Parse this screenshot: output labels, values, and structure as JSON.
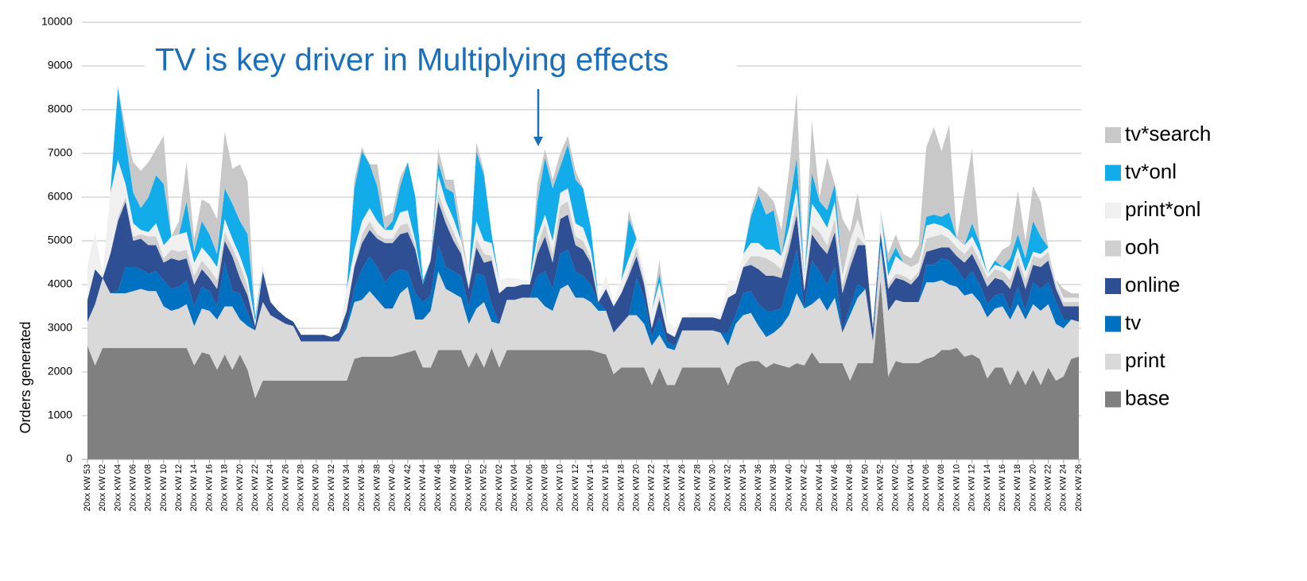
{
  "chart_data": {
    "type": "stacked_area",
    "annotation": "TV is key driver in Multiplying effects",
    "y_label": "Orders generated",
    "ylim": [
      0,
      10000
    ],
    "yticks": [
      0,
      1000,
      2000,
      3000,
      4000,
      5000,
      6000,
      7000,
      8000,
      9000,
      10000
    ],
    "grid": true,
    "legend": "right",
    "categories": [
      "20xx KW 53",
      null,
      "20xx KW 02",
      null,
      "20xx KW 04",
      null,
      "20xx KW 06",
      null,
      "20xx KW 08",
      null,
      "20xx KW 10",
      null,
      "20xx KW 12",
      null,
      "20xx KW 14",
      null,
      "20xx KW 16",
      null,
      "20xx KW 18",
      null,
      "20xx KW 20",
      null,
      "20xx KW 22",
      null,
      "20xx KW 24",
      null,
      "20xx KW 26",
      null,
      "20xx KW 28",
      null,
      "20xx KW 30",
      null,
      "20xx KW 32",
      null,
      "20xx KW 34",
      null,
      "20xx KW 36",
      null,
      "20xx KW 38",
      null,
      "20xx KW 40",
      null,
      "20xx KW 42",
      null,
      "20xx KW 44",
      null,
      "20xx KW 46",
      null,
      "20xx KW 48",
      null,
      "20xx KW 50",
      null,
      "20xx KW 52",
      null,
      "20xx KW 02",
      null,
      "20xx KW 04",
      null,
      "20xx KW 06",
      null,
      "20xx KW 08",
      null,
      "20xx KW 10",
      null,
      "20xx KW 12",
      null,
      "20xx KW 14",
      null,
      "20xx KW 16",
      null,
      "20xx KW 18",
      null,
      "20xx KW 20",
      null,
      "20xx KW 22",
      null,
      "20xx KW 24",
      null,
      "20xx KW 26",
      null,
      "20xx KW 28",
      null,
      "20xx KW 30",
      null,
      "20xx KW 32",
      null,
      "20xx KW 34",
      null,
      "20xx KW 36",
      null,
      "20xx KW 38",
      null,
      "20xx KW 40",
      null,
      "20xx KW 42",
      null,
      "20xx KW 44",
      null,
      "20xx KW 46",
      null,
      "20xx KW 48",
      null,
      "20xx KW 50",
      null,
      "20xx KW 52",
      null,
      "20xx KW 02",
      null,
      "20xx KW 04",
      null,
      "20xx KW 06",
      null,
      "20xx KW 08",
      null,
      "20xx KW 10",
      null,
      "20xx KW 12",
      null,
      "20xx KW 14",
      null,
      "20xx KW 16",
      null,
      "20xx KW 18",
      null,
      "20xx KW 20",
      null,
      "20xx KW 22",
      null,
      "20xx KW 24",
      null,
      "20xx KW 26"
    ],
    "series": [
      {
        "name": "base",
        "color": "#808080",
        "values": [
          2600,
          2150,
          2550,
          2550,
          2550,
          2550,
          2550,
          2550,
          2550,
          2550,
          2550,
          2550,
          2550,
          2550,
          2150,
          2450,
          2400,
          2050,
          2400,
          2050,
          2400,
          2050,
          1400,
          1800,
          1800,
          1800,
          1800,
          1800,
          1800,
          1800,
          1800,
          1800,
          1800,
          1800,
          1800,
          2300,
          2350,
          2350,
          2350,
          2350,
          2350,
          2400,
          2450,
          2500,
          2100,
          2100,
          2500,
          2500,
          2500,
          2500,
          2100,
          2450,
          2100,
          2550,
          2100,
          2500,
          2500,
          2500,
          2500,
          2500,
          2500,
          2500,
          2500,
          2500,
          2500,
          2500,
          2500,
          2450,
          2400,
          1950,
          2100,
          2100,
          2100,
          2100,
          1700,
          2100,
          1700,
          1700,
          2100,
          2100,
          2100,
          2100,
          2100,
          2100,
          1700,
          2100,
          2200,
          2250,
          2250,
          2100,
          2200,
          2150,
          2100,
          2200,
          2150,
          2450,
          2200,
          2200,
          2200,
          2200,
          1800,
          2200,
          2200,
          2200,
          4100,
          1900,
          2250,
          2200,
          2200,
          2200,
          2300,
          2350,
          2500,
          2500,
          2550,
          2350,
          2400,
          2300,
          1850,
          2100,
          2100,
          1700,
          2050,
          1700,
          2050,
          1700,
          2100,
          1800,
          1900,
          2300,
          2350
        ]
      },
      {
        "name": "print",
        "color": "#d9d9d9",
        "values": [
          550,
          1400,
          1600,
          1250,
          1250,
          1250,
          1300,
          1350,
          1300,
          1300,
          950,
          850,
          900,
          1000,
          900,
          1000,
          1000,
          1150,
          1100,
          1450,
          800,
          1000,
          1550,
          1800,
          1500,
          1400,
          1300,
          1250,
          900,
          900,
          900,
          900,
          900,
          900,
          1200,
          1300,
          1300,
          1500,
          1300,
          1100,
          1100,
          1400,
          1500,
          700,
          1100,
          1300,
          1800,
          1400,
          1300,
          1200,
          1000,
          1000,
          1500,
          600,
          1000,
          1150,
          1150,
          1200,
          1200,
          1200,
          1000,
          900,
          1400,
          1500,
          1200,
          1200,
          1100,
          950,
          1000,
          950,
          1000,
          1200,
          1200,
          1000,
          900,
          750,
          850,
          800,
          850,
          850,
          850,
          850,
          850,
          800,
          900,
          1000,
          1100,
          1100,
          800,
          700,
          700,
          900,
          1200,
          1600,
          1300,
          1100,
          1500,
          1200,
          1500,
          700,
          1500,
          1500,
          1700,
          500,
          800,
          1500,
          1400,
          1400,
          1400,
          1400,
          1750,
          1700,
          1600,
          1500,
          1400,
          1400,
          1400,
          1300,
          1400,
          1350,
          1400,
          1500,
          1500,
          1500,
          1500,
          1700,
          1450,
          1300,
          1100,
          900,
          800
        ]
      },
      {
        "name": "tv",
        "color": "#0070c0",
        "values": [
          0,
          0,
          0,
          0,
          50,
          600,
          550,
          450,
          400,
          450,
          600,
          500,
          500,
          550,
          450,
          500,
          450,
          300,
          1000,
          350,
          600,
          300,
          0,
          0,
          0,
          0,
          0,
          0,
          0,
          0,
          0,
          0,
          0,
          0,
          100,
          300,
          700,
          800,
          750,
          600,
          800,
          550,
          350,
          600,
          400,
          350,
          600,
          500,
          500,
          500,
          400,
          800,
          600,
          400,
          0,
          0,
          0,
          0,
          0,
          500,
          800,
          500,
          800,
          800,
          600,
          500,
          400,
          200,
          0,
          0,
          0,
          0,
          850,
          600,
          200,
          400,
          150,
          100,
          0,
          0,
          0,
          0,
          0,
          0,
          300,
          200,
          500,
          500,
          500,
          600,
          500,
          400,
          800,
          1000,
          0,
          1000,
          600,
          600,
          700,
          0,
          200,
          300,
          0,
          0,
          300,
          0,
          0,
          0,
          0,
          0,
          400,
          400,
          500,
          550,
          400,
          350,
          500,
          400,
          300,
          300,
          300,
          200,
          400,
          200,
          500,
          500,
          500,
          500,
          200,
          0,
          0
        ]
      },
      {
        "name": "online",
        "color": "#2f4f95",
        "values": [
          500,
          800,
          0,
          900,
          1600,
          1500,
          600,
          700,
          650,
          600,
          400,
          700,
          600,
          500,
          500,
          400,
          300,
          400,
          500,
          800,
          350,
          400,
          100,
          700,
          300,
          200,
          150,
          100,
          150,
          150,
          150,
          150,
          100,
          200,
          300,
          500,
          600,
          600,
          650,
          900,
          700,
          800,
          900,
          1000,
          400,
          800,
          1000,
          1000,
          700,
          500,
          400,
          600,
          300,
          1000,
          700,
          300,
          300,
          300,
          300,
          500,
          800,
          600,
          800,
          800,
          600,
          600,
          500,
          0,
          500,
          600,
          700,
          900,
          500,
          300,
          200,
          400,
          200,
          200,
          300,
          300,
          300,
          300,
          300,
          300,
          800,
          500,
          600,
          600,
          800,
          800,
          800,
          700,
          700,
          800,
          400,
          600,
          600,
          700,
          800,
          900,
          900,
          900,
          1000,
          300,
          0,
          500,
          500,
          500,
          400,
          600,
          300,
          350,
          250,
          300,
          300,
          400,
          400,
          350,
          400,
          400,
          300,
          500,
          500,
          500,
          400,
          500,
          500,
          300,
          300,
          300,
          350
        ]
      },
      {
        "name": "ooh",
        "color": "#d0d0d0",
        "values": [
          0,
          0,
          0,
          0,
          100,
          100,
          100,
          100,
          200,
          200,
          100,
          200,
          200,
          200,
          200,
          200,
          200,
          200,
          200,
          200,
          300,
          200,
          0,
          0,
          0,
          0,
          0,
          0,
          0,
          0,
          0,
          0,
          0,
          0,
          0,
          0,
          200,
          200,
          100,
          100,
          100,
          200,
          200,
          100,
          0,
          0,
          200,
          200,
          200,
          100,
          100,
          200,
          200,
          100,
          0,
          0,
          0,
          0,
          0,
          200,
          300,
          200,
          300,
          300,
          200,
          200,
          100,
          0,
          0,
          0,
          0,
          100,
          200,
          100,
          0,
          100,
          0,
          0,
          0,
          0,
          0,
          0,
          0,
          0,
          0,
          0,
          0,
          200,
          300,
          400,
          300,
          200,
          200,
          300,
          100,
          200,
          300,
          200,
          300,
          200,
          200,
          200,
          0,
          0,
          0,
          100,
          100,
          100,
          100,
          100,
          300,
          300,
          300,
          200,
          200,
          200,
          200,
          200,
          200,
          200,
          200,
          200,
          200,
          200,
          200,
          200,
          200,
          100,
          100,
          100,
          100
        ]
      },
      {
        "name": "print*onl",
        "color": "#f0f0f0",
        "values": [
          800,
          850,
          100,
          1400,
          1300,
          300,
          300,
          100,
          100,
          300,
          300,
          300,
          400,
          400,
          300,
          300,
          300,
          300,
          300,
          200,
          200,
          200,
          100,
          150,
          0,
          0,
          0,
          0,
          0,
          0,
          0,
          0,
          0,
          0,
          500,
          400,
          300,
          300,
          300,
          200,
          200,
          300,
          300,
          100,
          0,
          0,
          400,
          300,
          300,
          200,
          200,
          400,
          300,
          300,
          300,
          200,
          200,
          100,
          100,
          200,
          200,
          300,
          300,
          300,
          300,
          300,
          200,
          100,
          300,
          100,
          300,
          300,
          200,
          200,
          400,
          300,
          300,
          200,
          0,
          100,
          100,
          100,
          100,
          100,
          400,
          300,
          300,
          300,
          300,
          200,
          300,
          300,
          300,
          300,
          200,
          500,
          400,
          400,
          400,
          200,
          400,
          400,
          100,
          100,
          500,
          200,
          400,
          300,
          300,
          200,
          300,
          300,
          200,
          200,
          200,
          200,
          200,
          200,
          100,
          100,
          100,
          200,
          200,
          200,
          100,
          100,
          100,
          100,
          100,
          100,
          100
        ]
      },
      {
        "name": "tv*onl",
        "color": "#12acea",
        "values": [
          0,
          0,
          0,
          0,
          1650,
          1000,
          700,
          500,
          800,
          1100,
          1400,
          0,
          0,
          700,
          250,
          600,
          500,
          300,
          700,
          800,
          800,
          1000,
          100,
          0,
          0,
          0,
          0,
          0,
          0,
          0,
          0,
          0,
          0,
          0,
          0,
          1400,
          1600,
          1000,
          800,
          0,
          200,
          600,
          1100,
          1000,
          100,
          0,
          300,
          300,
          600,
          0,
          0,
          1600,
          1500,
          200,
          0,
          0,
          0,
          0,
          0,
          800,
          1300,
          1200,
          600,
          1000,
          1000,
          900,
          500,
          0,
          0,
          0,
          0,
          900,
          0,
          0,
          0,
          200,
          0,
          0,
          0,
          0,
          0,
          0,
          0,
          0,
          0,
          0,
          0,
          600,
          1100,
          800,
          900,
          0,
          500,
          700,
          0,
          700,
          300,
          400,
          400,
          0,
          0,
          0,
          0,
          0,
          0,
          300,
          200,
          0,
          0,
          0,
          200,
          200,
          200,
          400,
          0,
          0,
          300,
          200,
          0,
          100,
          0,
          300,
          300,
          300,
          700,
          400,
          0,
          0,
          0,
          0,
          0
        ]
      },
      {
        "name": "tv*search",
        "color": "#c8c8c8",
        "values": [
          0,
          0,
          0,
          0,
          50,
          250,
          700,
          850,
          800,
          600,
          1100,
          0,
          300,
          900,
          300,
          500,
          700,
          800,
          1300,
          800,
          1300,
          1200,
          0,
          0,
          0,
          0,
          0,
          0,
          0,
          0,
          0,
          0,
          0,
          0,
          0,
          200,
          100,
          0,
          500,
          300,
          200,
          200,
          0,
          0,
          0,
          0,
          300,
          200,
          300,
          300,
          0,
          200,
          100,
          0,
          0,
          0,
          0,
          0,
          0,
          400,
          200,
          200,
          300,
          200,
          200,
          0,
          0,
          0,
          0,
          0,
          0,
          200,
          0,
          0,
          0,
          300,
          0,
          0,
          0,
          0,
          0,
          0,
          0,
          0,
          0,
          0,
          0,
          100,
          200,
          500,
          200,
          600,
          800,
          1500,
          0,
          1200,
          100,
          1200,
          0,
          1300,
          200,
          600,
          0,
          0,
          0,
          200,
          300,
          200,
          200,
          400,
          1600,
          2000,
          1500,
          2000,
          0,
          1200,
          1700,
          0,
          0,
          0,
          400,
          300,
          1000,
          400,
          800,
          800,
          0,
          0,
          200,
          100,
          100
        ]
      }
    ]
  }
}
